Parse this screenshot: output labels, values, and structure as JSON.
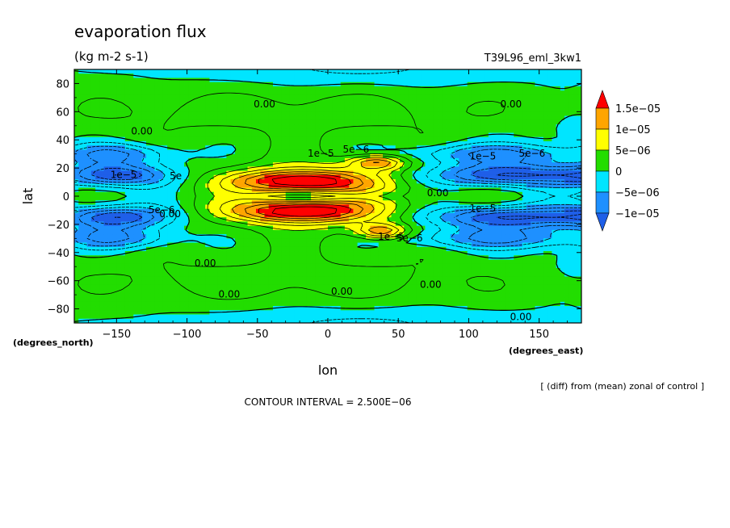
{
  "chart_data": {
    "type": "heatmap",
    "title": "evaporation flux",
    "units": "(kg m-2 s-1)",
    "experiment": "T39L96_eml_3kw1",
    "xlabel": "lon",
    "ylabel": "lat",
    "x_units": "(degrees_east)",
    "y_units": "(degrees_north)",
    "xlim": [
      -180,
      180
    ],
    "ylim": [
      -90,
      90
    ],
    "xticks": [
      -150,
      -100,
      -50,
      0,
      50,
      100,
      150
    ],
    "xtick_labels": [
      "−150",
      "−100",
      "−50",
      "0",
      "50",
      "100",
      "150"
    ],
    "yticks": [
      -80,
      -60,
      -40,
      -20,
      0,
      20,
      40,
      60,
      80
    ],
    "ytick_labels": [
      "−80",
      "−60",
      "−40",
      "−20",
      "0",
      "20",
      "40",
      "60",
      "80"
    ],
    "contour_interval": 2.5e-06,
    "colorbar": {
      "levels": [
        -1e-05,
        -5e-06,
        0,
        5e-06,
        1e-05,
        1.5e-05
      ],
      "labels": [
        "−1e−05",
        "−5e−06",
        "0",
        "5e−06",
        "1e−05",
        "1.5e−05"
      ],
      "colors": [
        "#1f5fe8",
        "#1e90ff",
        "#00e5ff",
        "#22dd00",
        "#ffff00",
        "#ffa500",
        "#ff0000"
      ]
    },
    "contour_labels": [
      {
        "text": "0.00",
        "x": -45,
        "y": 65
      },
      {
        "text": "0.00",
        "x": 130,
        "y": 65
      },
      {
        "text": "0.00",
        "x": -132,
        "y": 46
      },
      {
        "text": "1e−5",
        "x": -5,
        "y": 30
      },
      {
        "text": "5e−6",
        "x": 20,
        "y": 33
      },
      {
        "text": "1e−5",
        "x": 110,
        "y": 28
      },
      {
        "text": "5e−6",
        "x": 145,
        "y": 30
      },
      {
        "text": "1e−5",
        "x": -145,
        "y": 15
      },
      {
        "text": "5e",
        "x": -108,
        "y": 14
      },
      {
        "text": "0.00",
        "x": 78,
        "y": 2
      },
      {
        "text": "5e−6",
        "x": -118,
        "y": -10
      },
      {
        "text": "0.00",
        "x": -112,
        "y": -13
      },
      {
        "text": "1e−5",
        "x": 110,
        "y": -9
      },
      {
        "text": "1e−5",
        "x": 45,
        "y": -29
      },
      {
        "text": "5e−6",
        "x": 58,
        "y": -30
      },
      {
        "text": "0.00",
        "x": -87,
        "y": -48
      },
      {
        "text": "0.00",
        "x": 73,
        "y": -63
      },
      {
        "text": "0.00",
        "x": -70,
        "y": -70
      },
      {
        "text": "0.00",
        "x": 10,
        "y": -68
      },
      {
        "text": "0.00",
        "x": 137,
        "y": -86
      }
    ]
  },
  "footnote": "[ (diff) from (mean) zonal of control ]",
  "contour_interval_label": "CONTOUR INTERVAL = 2.500E−06"
}
